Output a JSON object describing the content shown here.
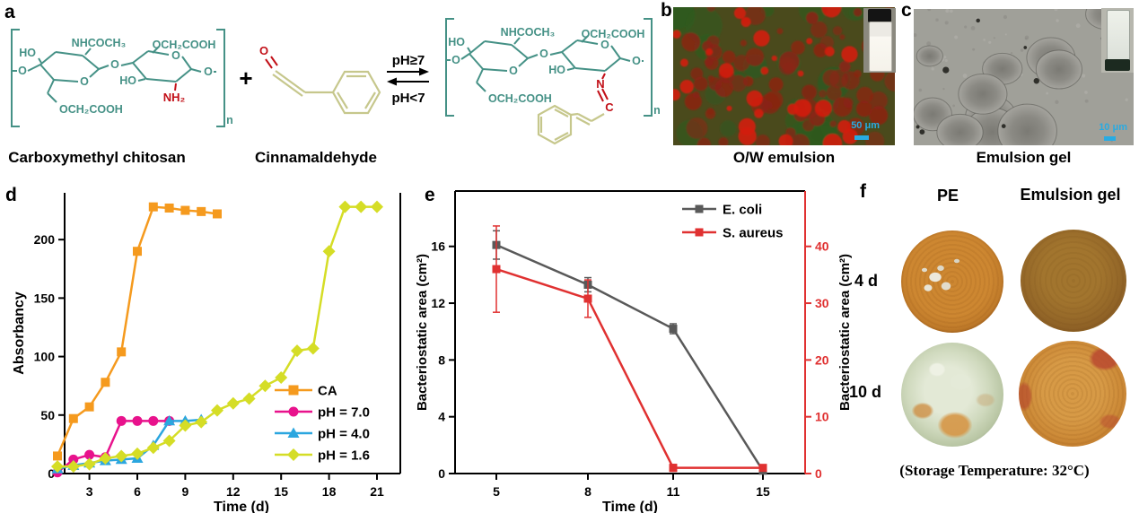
{
  "panels": {
    "a": {
      "label": "a",
      "reactant_name": "Carboxymethyl chitosan",
      "reagent_name": "Cinnamaldehyde",
      "plus": "+",
      "condition_forward": "pH≥7",
      "condition_reverse": "pH<7",
      "repeat_subscript": "n",
      "atoms": {
        "ho": "HO",
        "o": "O",
        "nhcoch3": "NHCOCH₃",
        "och2cooh": "OCH₂COOH",
        "nh2": "NH₂",
        "n": "N",
        "c": "C"
      },
      "colors": {
        "backbone": "#459186",
        "highlight": "#C21018",
        "cinnamyl": "#C6C78C"
      }
    },
    "b": {
      "label": "b",
      "caption": "O/W emulsion",
      "scale_bar": "50 μm"
    },
    "c": {
      "label": "c",
      "caption": "Emulsion gel",
      "scale_bar": "10 μm"
    },
    "d": {
      "label": "d"
    },
    "e": {
      "label": "e"
    },
    "f": {
      "label": "f",
      "column_headers": [
        "PE",
        "Emulsion gel"
      ],
      "row_labels": [
        "4 d",
        "10 d"
      ],
      "caption": "(Storage Temperature: 32°C)"
    }
  },
  "chart_data": [
    {
      "id": "d",
      "type": "line",
      "xlabel": "Time (d)",
      "ylabel": "Absorbancy",
      "xlim": [
        0.3,
        21.9
      ],
      "ylim": [
        0,
        240
      ],
      "xticks": [
        3,
        6,
        9,
        12,
        15,
        18,
        21
      ],
      "yticks": [
        0,
        50,
        100,
        150,
        200
      ],
      "grid": false,
      "legend_position": "inside-bottom-right",
      "series": [
        {
          "name": "CA",
          "color": "#F59A1E",
          "marker": "square",
          "x": [
            1,
            2,
            3,
            4,
            5,
            6,
            7,
            8,
            9,
            10,
            11
          ],
          "y": [
            15,
            47,
            57,
            78,
            104,
            190,
            228,
            227,
            225,
            224,
            222
          ]
        },
        {
          "name": "pH = 7.0",
          "color": "#E8128C",
          "marker": "circle",
          "x": [
            1,
            2,
            3,
            4,
            5,
            6,
            7,
            8
          ],
          "y": [
            1,
            12,
            16,
            14,
            45,
            45,
            45,
            45
          ]
        },
        {
          "name": "pH = 4.0",
          "color": "#2BA6DF",
          "marker": "triangle",
          "x": [
            1,
            2,
            3,
            4,
            5,
            6,
            7,
            8,
            9,
            10
          ],
          "y": [
            4,
            7,
            9,
            11,
            12,
            13,
            24,
            45,
            45,
            46
          ]
        },
        {
          "name": "pH = 1.6",
          "color": "#D5DD26",
          "marker": "diamond",
          "x": [
            1,
            2,
            3,
            4,
            5,
            6,
            7,
            8,
            9,
            10,
            11,
            12,
            13,
            14,
            15,
            16,
            17,
            18,
            19,
            20,
            21
          ],
          "y": [
            6,
            6,
            8,
            13,
            15,
            17,
            22,
            28,
            41,
            44,
            54,
            60,
            64,
            75,
            82,
            105,
            107,
            190,
            228,
            228,
            228
          ]
        }
      ]
    },
    {
      "id": "e",
      "type": "line",
      "xlabel": "Time (d)",
      "ylabel_left": "Bacteriostatic area (cm²)",
      "ylabel_right": "Bacteriostatic area (cm²)",
      "categories": [
        5,
        8,
        11,
        15
      ],
      "ylim_left": [
        0,
        19.9
      ],
      "yticks_left": [
        0,
        4,
        8,
        12,
        16
      ],
      "ylim_right": [
        0,
        49.75
      ],
      "yticks_right": [
        0,
        10,
        20,
        30,
        40
      ],
      "right_axis_color": "#E03131",
      "grid": false,
      "legend_position": "inside-top-right",
      "series": [
        {
          "name": "E. coli",
          "color": "#595959",
          "marker": "square",
          "axis": "left",
          "y": [
            16.1,
            13.3,
            10.2,
            0.2
          ],
          "yerr": [
            1.0,
            0.5,
            0.35,
            0.15
          ]
        },
        {
          "name": "S. aureus",
          "color": "#E03131",
          "marker": "square",
          "axis": "right",
          "y": [
            36,
            30.8,
            1.0,
            1.0
          ],
          "yerr": [
            7.6,
            3.3,
            0.6,
            0.5
          ]
        }
      ]
    }
  ]
}
